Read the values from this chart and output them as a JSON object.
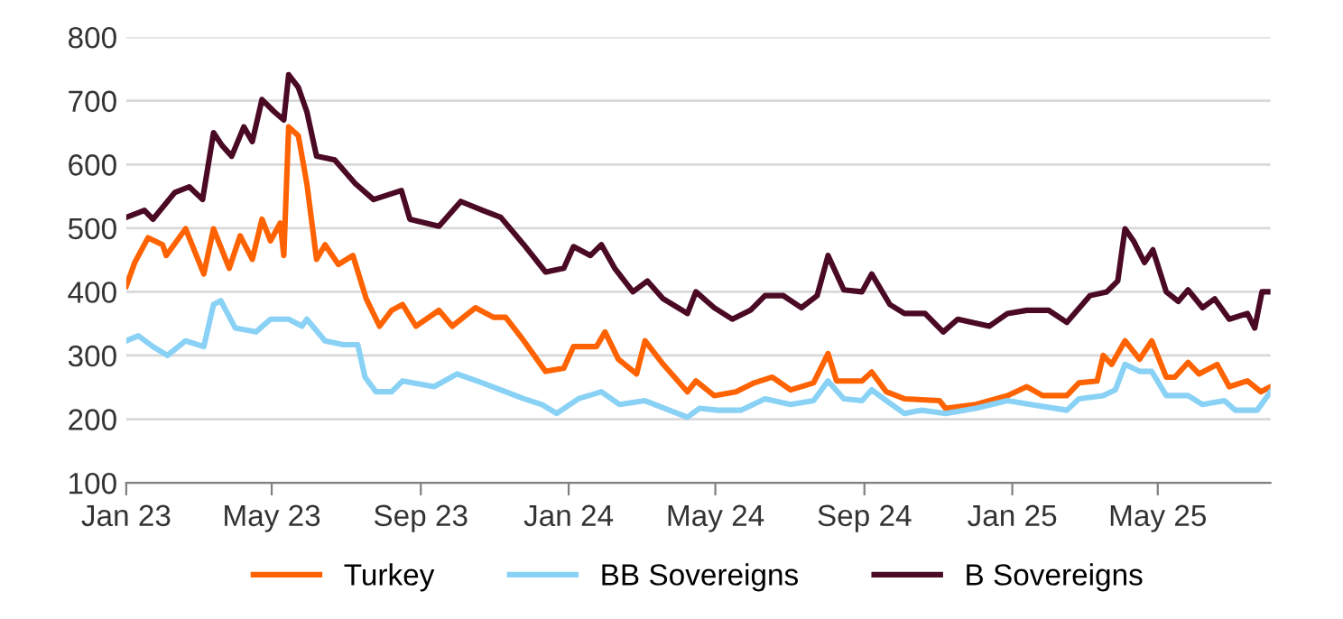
{
  "chart_data": {
    "type": "line",
    "xlim": [
      "2023-01-01",
      "2025-08-02"
    ],
    "xticks": [
      {
        "value": "2023-01-01",
        "label": "Jan 23"
      },
      {
        "value": "2023-05-01",
        "label": "May 23"
      },
      {
        "value": "2023-09-01",
        "label": "Sep 23"
      },
      {
        "value": "2024-01-01",
        "label": "Jan 24"
      },
      {
        "value": "2024-05-01",
        "label": "May 24"
      },
      {
        "value": "2024-09-01",
        "label": "Sep 24"
      },
      {
        "value": "2025-01-01",
        "label": "Jan 25"
      },
      {
        "value": "2025-05-01",
        "label": "May 25"
      }
    ],
    "ylim": [
      100,
      800
    ],
    "yticks": [
      100,
      200,
      300,
      400,
      500,
      600,
      700,
      800
    ],
    "grid": "y",
    "legend": "bottom",
    "marker": "none",
    "line_style": "solid",
    "series": [
      {
        "name": "Turkey",
        "color": "#ff6200",
        "x": [
          "2023-01-01",
          "2023-01-08",
          "2023-01-19",
          "2023-01-31",
          "2023-02-03",
          "2023-02-19",
          "2023-03-06",
          "2023-03-14",
          "2023-03-27",
          "2023-04-05",
          "2023-04-15",
          "2023-04-23",
          "2023-04-30",
          "2023-05-08",
          "2023-05-11",
          "2023-05-15",
          "2023-05-23",
          "2023-05-30",
          "2023-06-07",
          "2023-06-14",
          "2023-06-25",
          "2023-07-07",
          "2023-07-18",
          "2023-07-29",
          "2023-08-08",
          "2023-08-17",
          "2023-08-28",
          "2023-09-16",
          "2023-09-27",
          "2023-10-16",
          "2023-10-31",
          "2023-11-10",
          "2023-11-25",
          "2023-12-13",
          "2023-12-28",
          "2024-01-05",
          "2024-01-24",
          "2024-01-31",
          "2024-02-11",
          "2024-02-26",
          "2024-03-04",
          "2024-03-19",
          "2024-04-08",
          "2024-04-15",
          "2024-04-30",
          "2024-05-18",
          "2024-06-02",
          "2024-06-17",
          "2024-07-02",
          "2024-07-21",
          "2024-08-02",
          "2024-08-09",
          "2024-08-30",
          "2024-09-07",
          "2024-09-19",
          "2024-10-04",
          "2024-11-02",
          "2024-11-07",
          "2024-12-02",
          "2024-12-28",
          "2025-01-13",
          "2025-01-26",
          "2025-02-15",
          "2025-02-25",
          "2025-03-12",
          "2025-03-17",
          "2025-03-24",
          "2025-04-04",
          "2025-04-16",
          "2025-04-26",
          "2025-05-08",
          "2025-05-15",
          "2025-05-26",
          "2025-06-04",
          "2025-06-19",
          "2025-06-29",
          "2025-07-14",
          "2025-07-25",
          "2025-08-02"
        ],
        "values": [
          409,
          446,
          485,
          474,
          457,
          499,
          428,
          499,
          437,
          488,
          451,
          514,
          480,
          508,
          457,
          659,
          645,
          570,
          451,
          474,
          443,
          457,
          389,
          346,
          371,
          380,
          346,
          371,
          346,
          375,
          360,
          360,
          323,
          275,
          280,
          314,
          314,
          337,
          294,
          271,
          323,
          286,
          243,
          260,
          237,
          243,
          257,
          266,
          246,
          257,
          303,
          260,
          260,
          274,
          243,
          232,
          229,
          217,
          223,
          237,
          251,
          237,
          237,
          257,
          260,
          300,
          286,
          323,
          294,
          323,
          266,
          266,
          289,
          271,
          286,
          251,
          260,
          243,
          251
        ]
      },
      {
        "name": "BB Sovereigns",
        "color": "#89d2f5",
        "x": [
          "2023-01-01",
          "2023-01-11",
          "2023-01-23",
          "2023-02-04",
          "2023-02-19",
          "2023-03-06",
          "2023-03-14",
          "2023-03-20",
          "2023-04-01",
          "2023-04-18",
          "2023-04-30",
          "2023-05-15",
          "2023-05-26",
          "2023-05-30",
          "2023-06-14",
          "2023-06-29",
          "2023-07-11",
          "2023-07-17",
          "2023-07-26",
          "2023-08-08",
          "2023-08-17",
          "2023-09-12",
          "2023-10-01",
          "2023-10-22",
          "2023-11-06",
          "2023-11-25",
          "2023-12-10",
          "2023-12-22",
          "2024-01-09",
          "2024-01-28",
          "2024-02-12",
          "2024-03-04",
          "2024-03-24",
          "2024-04-08",
          "2024-04-18",
          "2024-05-03",
          "2024-05-22",
          "2024-06-11",
          "2024-07-02",
          "2024-07-21",
          "2024-08-02",
          "2024-08-15",
          "2024-08-30",
          "2024-09-07",
          "2024-09-19",
          "2024-10-04",
          "2024-10-18",
          "2024-11-07",
          "2024-12-02",
          "2024-12-28",
          "2025-01-16",
          "2025-02-15",
          "2025-02-25",
          "2025-03-17",
          "2025-03-27",
          "2025-04-04",
          "2025-04-16",
          "2025-04-26",
          "2025-05-08",
          "2025-05-26",
          "2025-06-07",
          "2025-06-25",
          "2025-07-04",
          "2025-07-22",
          "2025-08-02"
        ],
        "values": [
          323,
          331,
          314,
          300,
          323,
          314,
          380,
          386,
          343,
          337,
          357,
          357,
          346,
          357,
          323,
          317,
          317,
          266,
          243,
          243,
          260,
          251,
          271,
          257,
          246,
          232,
          223,
          209,
          232,
          243,
          223,
          229,
          214,
          203,
          217,
          214,
          214,
          232,
          223,
          229,
          260,
          232,
          229,
          246,
          229,
          209,
          214,
          209,
          217,
          229,
          223,
          214,
          232,
          237,
          246,
          286,
          275,
          275,
          237,
          237,
          223,
          229,
          214,
          214,
          243
        ]
      },
      {
        "name": "B Sovereigns",
        "color": "#4b0a24",
        "x": [
          "2023-01-01",
          "2023-01-16",
          "2023-01-23",
          "2023-02-10",
          "2023-02-22",
          "2023-03-05",
          "2023-03-14",
          "2023-03-21",
          "2023-03-29",
          "2023-04-08",
          "2023-04-15",
          "2023-04-23",
          "2023-05-03",
          "2023-05-11",
          "2023-05-15",
          "2023-05-23",
          "2023-05-30",
          "2023-06-07",
          "2023-06-22",
          "2023-07-09",
          "2023-07-24",
          "2023-08-16",
          "2023-08-23",
          "2023-09-16",
          "2023-10-04",
          "2023-10-22",
          "2023-11-06",
          "2023-11-25",
          "2023-12-13",
          "2023-12-28",
          "2024-01-05",
          "2024-01-19",
          "2024-01-28",
          "2024-02-08",
          "2024-02-23",
          "2024-03-06",
          "2024-03-19",
          "2024-04-08",
          "2024-04-15",
          "2024-04-30",
          "2024-05-15",
          "2024-05-30",
          "2024-06-11",
          "2024-06-26",
          "2024-07-11",
          "2024-07-24",
          "2024-08-02",
          "2024-08-15",
          "2024-08-30",
          "2024-09-07",
          "2024-09-22",
          "2024-10-04",
          "2024-10-21",
          "2024-11-05",
          "2024-11-17",
          "2024-12-13",
          "2024-12-28",
          "2025-01-13",
          "2025-01-31",
          "2025-02-15",
          "2025-03-06",
          "2025-03-20",
          "2025-03-29",
          "2025-04-04",
          "2025-04-11",
          "2025-04-20",
          "2025-04-27",
          "2025-05-08",
          "2025-05-18",
          "2025-05-26",
          "2025-06-07",
          "2025-06-17",
          "2025-06-29",
          "2025-07-14",
          "2025-07-20",
          "2025-07-26",
          "2025-08-02"
        ],
        "values": [
          517,
          528,
          514,
          556,
          565,
          545,
          650,
          630,
          613,
          659,
          636,
          702,
          683,
          670,
          741,
          721,
          683,
          613,
          607,
          570,
          545,
          559,
          514,
          503,
          542,
          528,
          517,
          474,
          431,
          437,
          471,
          457,
          474,
          437,
          400,
          417,
          389,
          366,
          400,
          375,
          357,
          371,
          394,
          394,
          375,
          394,
          457,
          403,
          400,
          428,
          380,
          366,
          366,
          337,
          357,
          346,
          366,
          371,
          371,
          352,
          394,
          400,
          417,
          499,
          480,
          446,
          466,
          400,
          385,
          403,
          375,
          389,
          357,
          366,
          343,
          400,
          400
        ]
      }
    ]
  }
}
